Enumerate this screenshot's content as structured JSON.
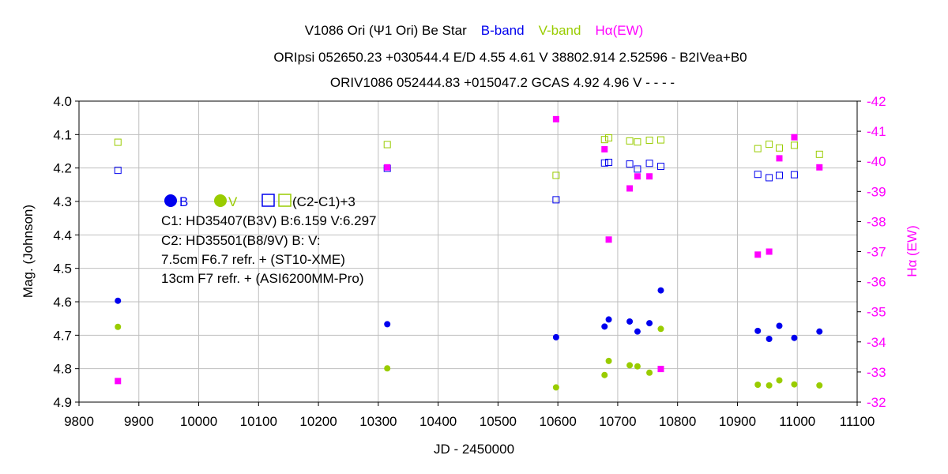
{
  "chart_data": {
    "type": "scatter",
    "title": {
      "prefix": "V1086 Ori (Ψ1 Ori)    Be Star",
      "b_label": "B-band",
      "v_label": "V-band",
      "ha_label": "Hα(EW)",
      "line2": "ORIpsi 052650.23 +030544.4 E/D 4.55 4.61 V 38802.914 2.52596 - B2IVea+B0",
      "line3": "ORIV1086 052444.83 +015047.2 GCAS 4.92 4.96 V - - - -"
    },
    "xlabel": "JD - 2450000",
    "ylabel": "Mag. (Johnson)",
    "y2label": "Hα (EW)",
    "xlim": [
      9800,
      11100
    ],
    "ylim": [
      4.0,
      4.9
    ],
    "y2lim": [
      -42,
      -32
    ],
    "xticks": [
      9800,
      9900,
      10000,
      10100,
      10200,
      10300,
      10400,
      10500,
      10600,
      10700,
      10800,
      10900,
      11000,
      11100
    ],
    "yticks": [
      "4.0",
      "4.1",
      "4.2",
      "4.3",
      "4.4",
      "4.5",
      "4.6",
      "4.7",
      "4.8",
      "4.9"
    ],
    "y2ticks": [
      -42,
      -41,
      -40,
      -39,
      -38,
      -37,
      -36,
      -35,
      -34,
      -33,
      -32
    ],
    "colors": {
      "B": "#0000ee",
      "V": "#99cc00",
      "Ha": "#ff00ff"
    },
    "series": [
      {
        "name": "B",
        "axis": "left",
        "marker": "circle",
        "x": [
          9865,
          10315,
          10597,
          10678,
          10685,
          10720,
          10733,
          10753,
          10772,
          10934,
          10953,
          10970,
          10995,
          11037
        ],
        "y": [
          4.597,
          4.667,
          4.706,
          4.674,
          4.653,
          4.659,
          4.689,
          4.664,
          4.566,
          4.687,
          4.711,
          4.672,
          4.708,
          4.689
        ]
      },
      {
        "name": "V",
        "axis": "left",
        "marker": "circle",
        "x": [
          9865,
          10315,
          10597,
          10678,
          10685,
          10720,
          10733,
          10753,
          10772,
          10934,
          10953,
          10970,
          10995,
          11037
        ],
        "y": [
          4.675,
          4.799,
          4.856,
          4.819,
          4.777,
          4.79,
          4.793,
          4.812,
          4.681,
          4.848,
          4.85,
          4.835,
          4.847,
          4.85
        ]
      },
      {
        "name": "B (C2-C1)+3",
        "axis": "left",
        "marker": "open-square",
        "x": [
          9865,
          10315,
          10597,
          10678,
          10685,
          10720,
          10733,
          10753,
          10772,
          10934,
          10953,
          10970,
          10995
        ],
        "y": [
          4.207,
          4.201,
          4.295,
          4.185,
          4.183,
          4.188,
          4.203,
          4.186,
          4.195,
          4.219,
          4.229,
          4.222,
          4.22
        ]
      },
      {
        "name": "V (C2-C1)+3",
        "axis": "left",
        "marker": "open-square",
        "x": [
          9865,
          10315,
          10597,
          10678,
          10685,
          10720,
          10733,
          10753,
          10772,
          10934,
          10953,
          10970,
          10995,
          11037
        ],
        "y": [
          4.123,
          4.13,
          4.222,
          4.115,
          4.11,
          4.119,
          4.122,
          4.117,
          4.116,
          4.142,
          4.129,
          4.14,
          4.132,
          4.159
        ]
      },
      {
        "name": "Hα(EW)",
        "axis": "right",
        "marker": "filled-square",
        "x": [
          9865,
          10315,
          10597,
          10678,
          10685,
          10720,
          10733,
          10753,
          10772,
          10934,
          10953,
          10970,
          10995,
          11037
        ],
        "y": [
          -32.7,
          -39.8,
          -41.4,
          -40.4,
          -37.4,
          -39.1,
          -39.5,
          -39.5,
          -33.1,
          -36.9,
          -37.0,
          -40.1,
          -40.8,
          -39.8
        ]
      }
    ],
    "legend": {
      "b_label": "B",
      "v_label": "V",
      "sq_label": "(C2-C1)+3",
      "lines": [
        "C1: HD35407(B3V)   B:6.159 V:6.297",
        "C2: HD35501(B8/9V)  B:  V:",
        "7.5cm F6.7 refr.  + (ST10-XME)",
        "13cm F7 refr.  + (ASI6200MM-Pro)"
      ]
    }
  }
}
